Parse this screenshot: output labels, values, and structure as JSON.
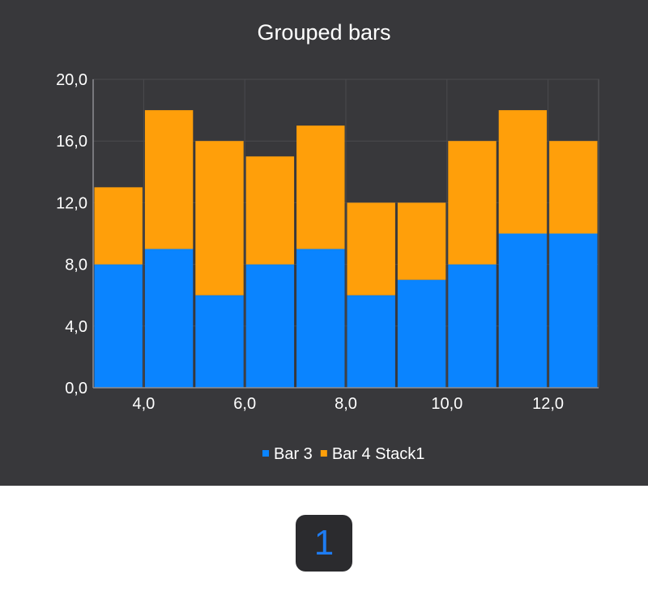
{
  "chart_data": {
    "type": "bar",
    "stacked": true,
    "title": "Grouped bars",
    "xlabel": "",
    "ylabel": "",
    "x": [
      3.5,
      4.5,
      5.5,
      6.5,
      7.5,
      8.5,
      9.5,
      10.5,
      11.5,
      12.5
    ],
    "xlim": [
      3.0,
      13.0
    ],
    "ylim": [
      0,
      20
    ],
    "x_ticks": [
      4,
      6,
      8,
      10,
      12
    ],
    "y_ticks": [
      0,
      4,
      8,
      12,
      16,
      20
    ],
    "x_tick_labels": [
      "4,0",
      "6,0",
      "8,0",
      "10,0",
      "12,0"
    ],
    "y_tick_labels": [
      "0,0",
      "4,0",
      "8,0",
      "12,0",
      "16,0",
      "20,0"
    ],
    "series": [
      {
        "name": "Bar 3",
        "color": "#0a84ff",
        "values": [
          8,
          9,
          6,
          8,
          9,
          6,
          7,
          8,
          10,
          10
        ]
      },
      {
        "name": "Bar 4 Stack1",
        "color": "#ff9f0a",
        "values": [
          5,
          9,
          10,
          7,
          8,
          6,
          5,
          8,
          8,
          6
        ]
      }
    ],
    "grid": true,
    "legend_position": "bottom-center",
    "background": "#38383b"
  },
  "page_indicator": {
    "label": "1"
  }
}
